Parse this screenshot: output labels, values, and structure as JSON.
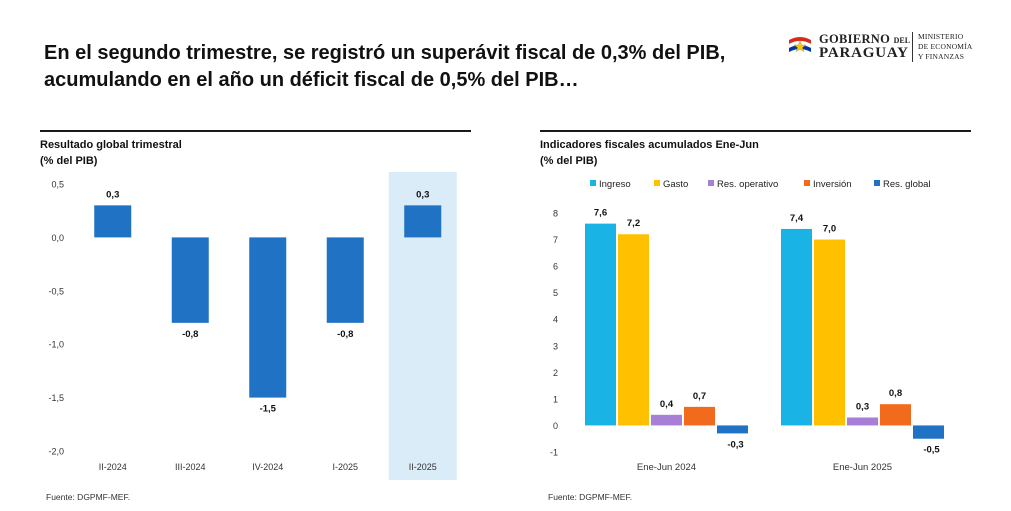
{
  "headline": {
    "line1": "En el segundo trimestre, se registró un superávit fiscal de 0,3% del PIB,",
    "line2": "acumulando en el año un déficit fiscal de 0,5% del PIB…"
  },
  "logo": {
    "gobierno": "GOBIERNO",
    "del": "DEL",
    "paraguay": "PARAGUAY",
    "ministerio_l1": "MINISTERIO",
    "ministerio_l2": "DE ECONOMÍA",
    "ministerio_l3": "Y FINANZAS",
    "colors": {
      "red": "#d52b1e",
      "blue": "#0038a8",
      "star": "#f5c518"
    }
  },
  "left_panel": {
    "title": "Resultado global trimestral",
    "subtitle": "(% del PIB)",
    "source": "Fuente: DGPMF-MEF."
  },
  "right_panel": {
    "title": "Indicadores fiscales acumulados Ene-Jun",
    "subtitle": "(% del PIB)",
    "source": "Fuente: DGPMF-MEF."
  },
  "chart_data": [
    {
      "type": "bar",
      "title": "Resultado global trimestral",
      "ylabel": "% del PIB",
      "categories": [
        "II-2024",
        "III-2024",
        "IV-2024",
        "I-2025",
        "II-2025"
      ],
      "values": [
        0.3,
        -0.8,
        -1.5,
        -0.8,
        0.3
      ],
      "value_labels": [
        "0,3",
        "-0,8",
        "-1,5",
        "-0,8",
        "0,3"
      ],
      "ylim": [
        -2.0,
        0.5
      ],
      "yticks": [
        0.5,
        0.0,
        -0.5,
        -1.0,
        -1.5,
        -2.0
      ],
      "ytick_labels": [
        "0,5",
        "0,0",
        "-0,5",
        "-1,0",
        "-1,5",
        "-2,0"
      ],
      "highlight_category": "II-2025",
      "bar_color": "#1f72c4",
      "highlight_color": "#d9ecf8",
      "grid": false
    },
    {
      "type": "bar",
      "title": "Indicadores fiscales acumulados Ene-Jun",
      "ylabel": "% del PIB",
      "categories": [
        "Ene-Jun 2024",
        "Ene-Jun 2025"
      ],
      "series": [
        {
          "name": "Ingreso",
          "color": "#19b3e6",
          "values": [
            7.6,
            7.4
          ],
          "labels": [
            "7,6",
            "7,4"
          ]
        },
        {
          "name": "Gasto",
          "color": "#ffc000",
          "values": [
            7.2,
            7.0
          ],
          "labels": [
            "7,2",
            "7,0"
          ]
        },
        {
          "name": "Res. operativo",
          "color": "#a77fd6",
          "values": [
            0.4,
            0.3
          ],
          "labels": [
            "0,4",
            "0,3"
          ]
        },
        {
          "name": "Inversión",
          "color": "#f26a1b",
          "values": [
            0.7,
            0.8
          ],
          "labels": [
            "0,7",
            "0,8"
          ]
        },
        {
          "name": "Res. global",
          "color": "#1f72c4",
          "values": [
            -0.3,
            -0.5
          ],
          "labels": [
            "-0,3",
            "-0,5"
          ]
        }
      ],
      "ylim": [
        -1,
        8
      ],
      "yticks": [
        8,
        7,
        6,
        5,
        4,
        3,
        2,
        1,
        0,
        -1
      ],
      "ytick_labels": [
        "8",
        "7",
        "6",
        "5",
        "4",
        "3",
        "2",
        "1",
        "0",
        "-1"
      ],
      "legend": "top",
      "grid": false
    }
  ]
}
